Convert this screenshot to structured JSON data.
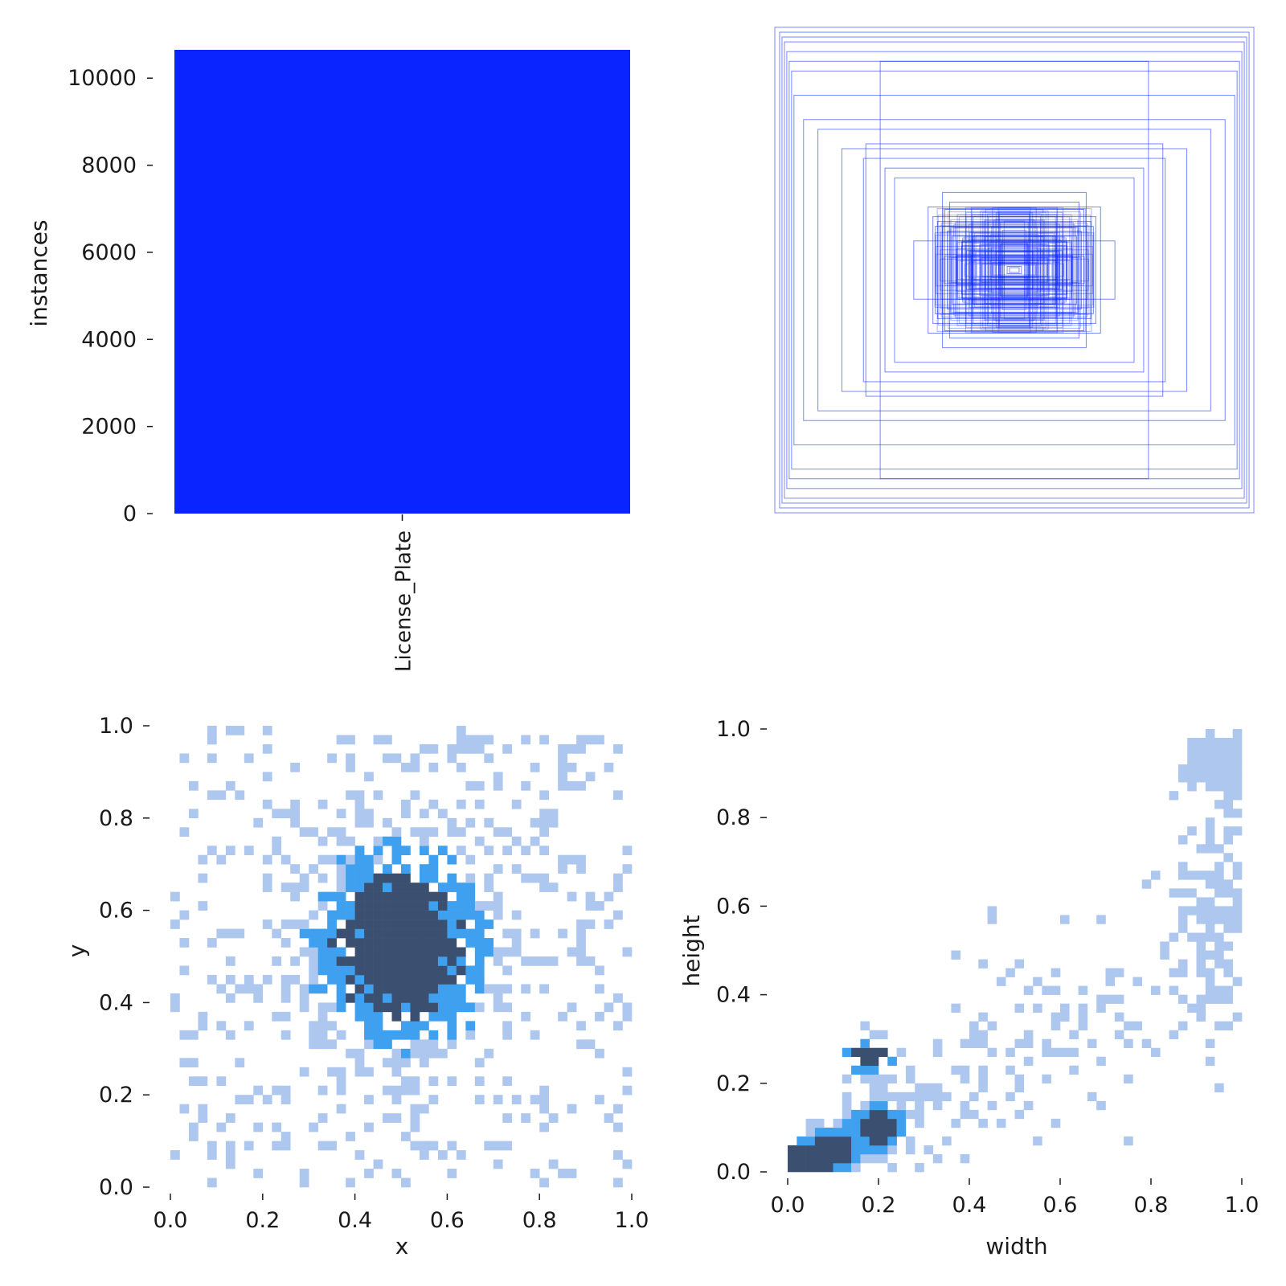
{
  "chart_data": [
    {
      "type": "bar",
      "categories": [
        "License_Plate"
      ],
      "values": [
        10650
      ],
      "xlabel": "",
      "ylabel": "instances",
      "ylim": [
        0,
        10650
      ],
      "yticks": [
        "0",
        "2000",
        "4000",
        "6000",
        "8000",
        "10000"
      ],
      "color": "#0a24ff"
    },
    {
      "type": "scatter",
      "description_free": true,
      "series": [
        {
          "values": [
            [
              0.5,
              0.5,
              1.0,
              1.0
            ],
            [
              0.5,
              0.5,
              0.98,
              0.98
            ],
            [
              0.5,
              0.5,
              0.97,
              0.96
            ],
            [
              0.5,
              0.5,
              0.96,
              0.94
            ],
            [
              0.5,
              0.5,
              0.95,
              0.9
            ],
            [
              0.5,
              0.5,
              0.94,
              0.86
            ],
            [
              0.5,
              0.5,
              0.93,
              0.82
            ],
            [
              0.5,
              0.5,
              0.92,
              0.72
            ],
            [
              0.5,
              0.5,
              0.88,
              0.62
            ],
            [
              0.5,
              0.5,
              0.82,
              0.58
            ],
            [
              0.5,
              0.5,
              0.56,
              0.86
            ],
            [
              0.5,
              0.5,
              0.54,
              0.42
            ],
            [
              0.5,
              0.5,
              0.63,
              0.46
            ],
            [
              0.5,
              0.5,
              0.72,
              0.5
            ],
            [
              0.5,
              0.5,
              0.62,
              0.52
            ],
            [
              0.5,
              0.5,
              0.5,
              0.38
            ],
            [
              0.5,
              0.5,
              0.36,
              0.26
            ],
            [
              0.5,
              0.5,
              0.34,
              0.22
            ],
            [
              0.5,
              0.5,
              0.32,
              0.2
            ],
            [
              0.5,
              0.5,
              0.3,
              0.18
            ],
            [
              0.5,
              0.5,
              0.28,
              0.16
            ],
            [
              0.5,
              0.5,
              0.26,
              0.14
            ],
            [
              0.5,
              0.5,
              0.24,
              0.12
            ],
            [
              0.5,
              0.5,
              0.22,
              0.1
            ],
            [
              0.5,
              0.5,
              0.2,
              0.08
            ],
            [
              0.5,
              0.5,
              0.18,
              0.06
            ],
            [
              0.5,
              0.5,
              0.14,
              0.05
            ],
            [
              0.5,
              0.5,
              0.1,
              0.04
            ],
            [
              0.5,
              0.5,
              0.06,
              0.03
            ],
            [
              0.5,
              0.5,
              0.03,
              0.015
            ],
            [
              0.5,
              0.5,
              0.02,
              0.01
            ],
            [
              0.5,
              0.5,
              0.42,
              0.12
            ],
            [
              0.5,
              0.5,
              0.3,
              0.32
            ],
            [
              0.5,
              0.5,
              0.29,
              0.25
            ],
            [
              0.5,
              0.5,
              0.27,
              0.28
            ],
            [
              0.5,
              0.5,
              0.33,
              0.18
            ]
          ]
        }
      ],
      "xlim": [
        0,
        1
      ],
      "ylim": [
        0,
        1
      ],
      "color": "#0a24ff"
    },
    {
      "type": "heatmap",
      "xlabel": "x",
      "ylabel": "y",
      "xlim": [
        0,
        1
      ],
      "ylim": [
        0,
        1
      ],
      "xticks": [
        "0.0",
        "0.2",
        "0.4",
        "0.6",
        "0.8",
        "1.0"
      ],
      "yticks": [
        "0.0",
        "0.2",
        "0.4",
        "0.6",
        "0.8",
        "1.0"
      ],
      "distribution": {
        "center": [
          0.5,
          0.52
        ],
        "spread": [
          0.13,
          0.15
        ]
      },
      "colors": [
        "#aec7ee",
        "#3ea0ee",
        "#3b5070"
      ]
    },
    {
      "type": "heatmap",
      "xlabel": "width",
      "ylabel": "height",
      "xlim": [
        0,
        1
      ],
      "ylim": [
        0,
        1
      ],
      "xticks": [
        "0.0",
        "0.2",
        "0.4",
        "0.6",
        "0.8",
        "1.0"
      ],
      "yticks": [
        "0.0",
        "0.2",
        "0.4",
        "0.6",
        "0.8",
        "1.0"
      ],
      "hotspots": [
        [
          0.1,
          0.05
        ],
        [
          0.2,
          0.1
        ],
        [
          0.18,
          0.26
        ],
        [
          0.04,
          0.02
        ]
      ],
      "colors": [
        "#aec7ee",
        "#3ea0ee",
        "#3b5070"
      ]
    }
  ]
}
